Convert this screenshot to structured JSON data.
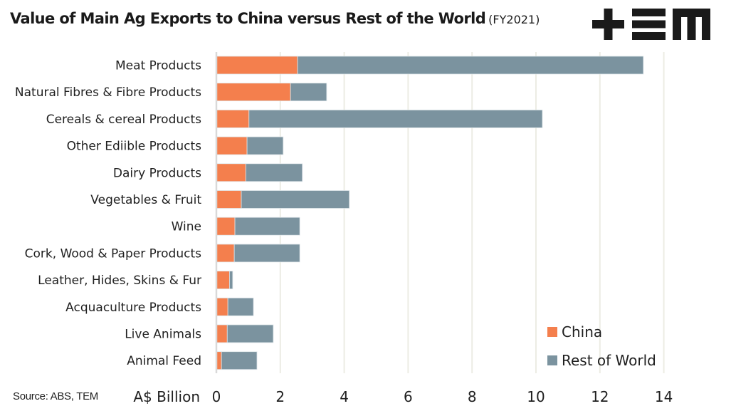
{
  "header": {
    "title": "Value of Main Ag Exports to China versus Rest of the World",
    "subtitle": "(FY2021)",
    "logo_name": "TEM logo"
  },
  "source": "Source: ABS, TEM",
  "chart_data": {
    "type": "bar",
    "orientation": "horizontal",
    "stacked": true,
    "title": "Value of Main Ag Exports to China versus Rest of the World (FY2021)",
    "xlabel": "A$ Billion",
    "ylabel": "",
    "xlim": [
      0,
      14
    ],
    "xticks": [
      0,
      2,
      4,
      6,
      8,
      10,
      12,
      14
    ],
    "xtick_labels": [
      "0",
      "2",
      "4",
      "6",
      "8",
      "10",
      "12",
      "14"
    ],
    "grid": "vertical",
    "legend_position": "bottom-right",
    "categories": [
      "Meat Products",
      "Natural Fibres & Fibre Products",
      "Cereals & cereal Products",
      "Other Ediible Products",
      "Dairy Products",
      "Vegetables & Fruit",
      "Wine",
      "Cork, Wood & Paper Products",
      "Leather, Hides, Skins & Fur",
      "Acquaculture Products",
      "Live Animals",
      "Animal Feed"
    ],
    "series": [
      {
        "name": "China",
        "color": "#f47f4d",
        "values": [
          2.54,
          2.32,
          1.02,
          0.96,
          0.92,
          0.78,
          0.58,
          0.56,
          0.41,
          0.36,
          0.34,
          0.16
        ]
      },
      {
        "name": "Rest of World",
        "color": "#7b939f",
        "values": [
          10.82,
          1.13,
          9.18,
          1.13,
          1.77,
          3.38,
          2.03,
          2.05,
          0.1,
          0.8,
          1.44,
          1.11
        ]
      }
    ]
  }
}
